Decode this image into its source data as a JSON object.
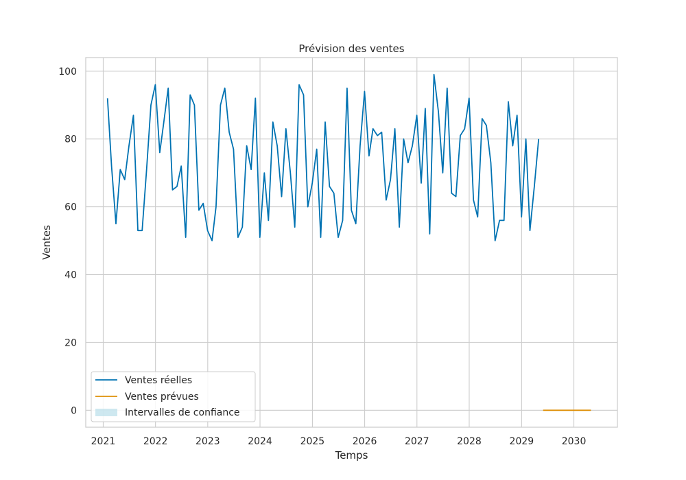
{
  "chart_data": {
    "type": "line",
    "title": "Prévision des ventes",
    "xlabel": "Temps",
    "ylabel": "Ventes",
    "xlim": [
      "2020-09-01",
      "2030-11-01"
    ],
    "ylim": [
      -5,
      104
    ],
    "grid": true,
    "x_ticks": [
      {
        "date": "2021-01-01",
        "label": "2021"
      },
      {
        "date": "2022-01-01",
        "label": "2022"
      },
      {
        "date": "2023-01-01",
        "label": "2023"
      },
      {
        "date": "2024-01-01",
        "label": "2024"
      },
      {
        "date": "2025-01-01",
        "label": "2025"
      },
      {
        "date": "2026-01-01",
        "label": "2026"
      },
      {
        "date": "2027-01-01",
        "label": "2027"
      },
      {
        "date": "2028-01-01",
        "label": "2028"
      },
      {
        "date": "2029-01-01",
        "label": "2029"
      },
      {
        "date": "2030-01-01",
        "label": "2030"
      }
    ],
    "y_ticks": [
      {
        "value": 0,
        "label": "0"
      },
      {
        "value": 20,
        "label": "20"
      },
      {
        "value": 40,
        "label": "40"
      },
      {
        "value": 60,
        "label": "60"
      },
      {
        "value": 80,
        "label": "80"
      },
      {
        "value": 100,
        "label": "100"
      }
    ],
    "legend_position": "lower-left",
    "series": [
      {
        "name": "Ventes réelles",
        "color": "#0072b2",
        "points": [
          [
            "2021-01-31",
            92
          ],
          [
            "2021-02-28",
            72
          ],
          [
            "2021-03-31",
            55
          ],
          [
            "2021-04-30",
            71
          ],
          [
            "2021-05-31",
            68
          ],
          [
            "2021-06-30",
            78
          ],
          [
            "2021-07-31",
            87
          ],
          [
            "2021-08-31",
            53
          ],
          [
            "2021-09-30",
            53
          ],
          [
            "2021-10-31",
            71
          ],
          [
            "2021-11-30",
            90
          ],
          [
            "2021-12-31",
            96
          ],
          [
            "2022-01-31",
            76
          ],
          [
            "2022-02-28",
            85
          ],
          [
            "2022-03-31",
            95
          ],
          [
            "2022-04-30",
            65
          ],
          [
            "2022-05-31",
            66
          ],
          [
            "2022-06-30",
            72
          ],
          [
            "2022-07-31",
            51
          ],
          [
            "2022-08-31",
            93
          ],
          [
            "2022-09-30",
            90
          ],
          [
            "2022-10-31",
            59
          ],
          [
            "2022-11-30",
            61
          ],
          [
            "2022-12-31",
            53
          ],
          [
            "2023-01-31",
            50
          ],
          [
            "2023-02-28",
            60
          ],
          [
            "2023-03-31",
            90
          ],
          [
            "2023-04-30",
            95
          ],
          [
            "2023-05-31",
            82
          ],
          [
            "2023-06-30",
            77
          ],
          [
            "2023-07-31",
            51
          ],
          [
            "2023-08-31",
            54
          ],
          [
            "2023-09-30",
            78
          ],
          [
            "2023-10-31",
            71
          ],
          [
            "2023-11-30",
            92
          ],
          [
            "2023-12-31",
            51
          ],
          [
            "2024-01-31",
            70
          ],
          [
            "2024-02-29",
            56
          ],
          [
            "2024-03-31",
            85
          ],
          [
            "2024-04-30",
            78
          ],
          [
            "2024-05-31",
            63
          ],
          [
            "2024-06-30",
            83
          ],
          [
            "2024-07-31",
            70
          ],
          [
            "2024-08-31",
            54
          ],
          [
            "2024-09-30",
            96
          ],
          [
            "2024-10-31",
            93
          ],
          [
            "2024-11-30",
            60
          ],
          [
            "2024-12-31",
            67
          ],
          [
            "2025-01-31",
            77
          ],
          [
            "2025-02-28",
            51
          ],
          [
            "2025-03-31",
            85
          ],
          [
            "2025-04-30",
            66
          ],
          [
            "2025-05-31",
            64
          ],
          [
            "2025-06-30",
            51
          ],
          [
            "2025-07-31",
            56
          ],
          [
            "2025-08-31",
            95
          ],
          [
            "2025-09-30",
            59
          ],
          [
            "2025-10-31",
            55
          ],
          [
            "2025-11-30",
            78
          ],
          [
            "2025-12-31",
            94
          ],
          [
            "2026-01-31",
            75
          ],
          [
            "2026-02-28",
            83
          ],
          [
            "2026-03-31",
            81
          ],
          [
            "2026-04-30",
            82
          ],
          [
            "2026-05-31",
            62
          ],
          [
            "2026-06-30",
            68
          ],
          [
            "2026-07-31",
            83
          ],
          [
            "2026-08-31",
            54
          ],
          [
            "2026-09-30",
            80
          ],
          [
            "2026-10-31",
            73
          ],
          [
            "2026-11-30",
            78
          ],
          [
            "2026-12-31",
            87
          ],
          [
            "2027-01-31",
            67
          ],
          [
            "2027-02-28",
            89
          ],
          [
            "2027-03-31",
            52
          ],
          [
            "2027-04-30",
            99
          ],
          [
            "2027-05-31",
            88
          ],
          [
            "2027-06-30",
            70
          ],
          [
            "2027-07-31",
            95
          ],
          [
            "2027-08-31",
            64
          ],
          [
            "2027-09-30",
            63
          ],
          [
            "2027-10-31",
            81
          ],
          [
            "2027-11-30",
            83
          ],
          [
            "2027-12-31",
            92
          ],
          [
            "2028-01-31",
            62
          ],
          [
            "2028-02-29",
            57
          ],
          [
            "2028-03-31",
            86
          ],
          [
            "2028-04-30",
            84
          ],
          [
            "2028-05-31",
            73
          ],
          [
            "2028-06-30",
            50
          ],
          [
            "2028-07-31",
            56
          ],
          [
            "2028-08-31",
            56
          ],
          [
            "2028-09-30",
            91
          ],
          [
            "2028-10-31",
            78
          ],
          [
            "2028-11-30",
            87
          ],
          [
            "2028-12-31",
            57
          ],
          [
            "2029-01-31",
            80
          ],
          [
            "2029-02-28",
            53
          ],
          [
            "2029-03-31",
            66
          ],
          [
            "2029-04-30",
            80
          ]
        ]
      },
      {
        "name": "Ventes prévues",
        "color": "#de8f05",
        "points": [
          [
            "2029-05-31",
            0
          ],
          [
            "2030-04-30",
            0
          ]
        ]
      }
    ],
    "bands": [
      {
        "name": "Intervalles de confiance",
        "color": "#add8e6",
        "points": [
          [
            "2029-05-31",
            0,
            0
          ],
          [
            "2030-04-30",
            0,
            0
          ]
        ]
      }
    ]
  }
}
